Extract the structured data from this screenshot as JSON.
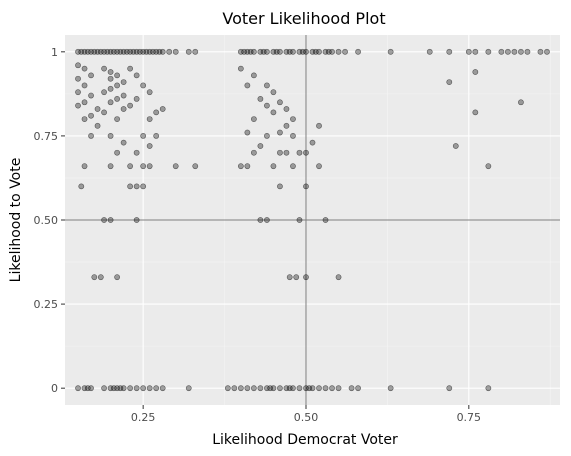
{
  "chart_data": {
    "type": "scatter",
    "title": "Voter Likelihood Plot",
    "xlabel": "Likelihood Democrat Voter",
    "ylabel": "Likelihood to Vote",
    "xlim": [
      0.13,
      0.89
    ],
    "ylim": [
      -0.05,
      1.05
    ],
    "x_ticks": [
      0.25,
      0.5,
      0.75
    ],
    "x_tick_labels": [
      "0.25",
      "0.50",
      "0.75"
    ],
    "y_ticks": [
      0,
      0.25,
      0.5,
      0.75,
      1
    ],
    "y_tick_labels": [
      "0",
      "0.25",
      "0.50",
      "0.75",
      "1"
    ],
    "reference_lines": {
      "x": 0.5,
      "y": 0.5,
      "color": "#7f7f7f"
    },
    "grid": true,
    "panel_color": "#ebebeb",
    "point_color": "#000000",
    "point_alpha": 0.35,
    "points": [
      [
        0.15,
        1
      ],
      [
        0.16,
        1
      ],
      [
        0.17,
        1
      ],
      [
        0.18,
        1
      ],
      [
        0.19,
        1
      ],
      [
        0.2,
        1
      ],
      [
        0.21,
        1
      ],
      [
        0.22,
        1
      ],
      [
        0.23,
        1
      ],
      [
        0.24,
        1
      ],
      [
        0.25,
        1
      ],
      [
        0.26,
        1
      ],
      [
        0.27,
        1
      ],
      [
        0.28,
        1
      ],
      [
        0.29,
        1
      ],
      [
        0.3,
        1
      ],
      [
        0.32,
        1
      ],
      [
        0.33,
        1
      ],
      [
        0.155,
        1
      ],
      [
        0.165,
        1
      ],
      [
        0.175,
        1
      ],
      [
        0.185,
        1
      ],
      [
        0.195,
        1
      ],
      [
        0.205,
        1
      ],
      [
        0.215,
        1
      ],
      [
        0.225,
        1
      ],
      [
        0.235,
        1
      ],
      [
        0.245,
        1
      ],
      [
        0.255,
        1
      ],
      [
        0.265,
        1
      ],
      [
        0.275,
        1
      ],
      [
        0.4,
        1
      ],
      [
        0.41,
        1
      ],
      [
        0.42,
        1
      ],
      [
        0.43,
        1
      ],
      [
        0.44,
        1
      ],
      [
        0.45,
        1
      ],
      [
        0.46,
        1
      ],
      [
        0.47,
        1
      ],
      [
        0.48,
        1
      ],
      [
        0.49,
        1
      ],
      [
        0.5,
        1
      ],
      [
        0.51,
        1
      ],
      [
        0.52,
        1
      ],
      [
        0.53,
        1
      ],
      [
        0.54,
        1
      ],
      [
        0.55,
        1
      ],
      [
        0.56,
        1
      ],
      [
        0.58,
        1
      ],
      [
        0.405,
        1
      ],
      [
        0.415,
        1
      ],
      [
        0.435,
        1
      ],
      [
        0.455,
        1
      ],
      [
        0.475,
        1
      ],
      [
        0.495,
        1
      ],
      [
        0.515,
        1
      ],
      [
        0.535,
        1
      ],
      [
        0.63,
        1
      ],
      [
        0.69,
        1
      ],
      [
        0.72,
        1
      ],
      [
        0.75,
        1
      ],
      [
        0.76,
        1
      ],
      [
        0.78,
        1
      ],
      [
        0.8,
        1
      ],
      [
        0.81,
        1
      ],
      [
        0.82,
        1
      ],
      [
        0.83,
        1
      ],
      [
        0.84,
        1
      ],
      [
        0.86,
        1
      ],
      [
        0.87,
        1
      ],
      [
        0.15,
        0
      ],
      [
        0.16,
        0
      ],
      [
        0.17,
        0
      ],
      [
        0.19,
        0
      ],
      [
        0.2,
        0
      ],
      [
        0.21,
        0
      ],
      [
        0.22,
        0
      ],
      [
        0.23,
        0
      ],
      [
        0.24,
        0
      ],
      [
        0.25,
        0
      ],
      [
        0.26,
        0
      ],
      [
        0.27,
        0
      ],
      [
        0.28,
        0
      ],
      [
        0.32,
        0
      ],
      [
        0.205,
        0
      ],
      [
        0.215,
        0
      ],
      [
        0.165,
        0
      ],
      [
        0.38,
        0
      ],
      [
        0.39,
        0
      ],
      [
        0.4,
        0
      ],
      [
        0.41,
        0
      ],
      [
        0.42,
        0
      ],
      [
        0.43,
        0
      ],
      [
        0.44,
        0
      ],
      [
        0.45,
        0
      ],
      [
        0.46,
        0
      ],
      [
        0.47,
        0
      ],
      [
        0.48,
        0
      ],
      [
        0.49,
        0
      ],
      [
        0.5,
        0
      ],
      [
        0.51,
        0
      ],
      [
        0.52,
        0
      ],
      [
        0.53,
        0
      ],
      [
        0.54,
        0
      ],
      [
        0.55,
        0
      ],
      [
        0.57,
        0
      ],
      [
        0.58,
        0
      ],
      [
        0.445,
        0
      ],
      [
        0.475,
        0
      ],
      [
        0.505,
        0
      ],
      [
        0.63,
        0
      ],
      [
        0.72,
        0
      ],
      [
        0.78,
        0
      ],
      [
        0.15,
        0.96
      ],
      [
        0.16,
        0.95
      ],
      [
        0.17,
        0.93
      ],
      [
        0.15,
        0.92
      ],
      [
        0.16,
        0.9
      ],
      [
        0.15,
        0.88
      ],
      [
        0.17,
        0.87
      ],
      [
        0.16,
        0.85
      ],
      [
        0.15,
        0.84
      ],
      [
        0.18,
        0.83
      ],
      [
        0.17,
        0.81
      ],
      [
        0.16,
        0.8
      ],
      [
        0.18,
        0.78
      ],
      [
        0.17,
        0.75
      ],
      [
        0.16,
        0.66
      ],
      [
        0.155,
        0.6
      ],
      [
        0.19,
        0.95
      ],
      [
        0.2,
        0.94
      ],
      [
        0.21,
        0.93
      ],
      [
        0.2,
        0.92
      ],
      [
        0.22,
        0.91
      ],
      [
        0.21,
        0.9
      ],
      [
        0.2,
        0.89
      ],
      [
        0.19,
        0.88
      ],
      [
        0.22,
        0.87
      ],
      [
        0.21,
        0.86
      ],
      [
        0.2,
        0.85
      ],
      [
        0.23,
        0.84
      ],
      [
        0.22,
        0.83
      ],
      [
        0.19,
        0.82
      ],
      [
        0.21,
        0.8
      ],
      [
        0.2,
        0.75
      ],
      [
        0.22,
        0.73
      ],
      [
        0.21,
        0.7
      ],
      [
        0.23,
        0.66
      ],
      [
        0.2,
        0.66
      ],
      [
        0.19,
        0.5
      ],
      [
        0.2,
        0.5
      ],
      [
        0.185,
        0.33
      ],
      [
        0.21,
        0.33
      ],
      [
        0.175,
        0.33
      ],
      [
        0.23,
        0.95
      ],
      [
        0.24,
        0.93
      ],
      [
        0.25,
        0.9
      ],
      [
        0.26,
        0.88
      ],
      [
        0.24,
        0.86
      ],
      [
        0.27,
        0.82
      ],
      [
        0.26,
        0.8
      ],
      [
        0.25,
        0.75
      ],
      [
        0.27,
        0.75
      ],
      [
        0.24,
        0.7
      ],
      [
        0.25,
        0.66
      ],
      [
        0.26,
        0.66
      ],
      [
        0.24,
        0.6
      ],
      [
        0.25,
        0.6
      ],
      [
        0.24,
        0.5
      ],
      [
        0.23,
        0.6
      ],
      [
        0.28,
        0.83
      ],
      [
        0.26,
        0.72
      ],
      [
        0.3,
        0.66
      ],
      [
        0.33,
        0.66
      ],
      [
        0.4,
        0.95
      ],
      [
        0.42,
        0.93
      ],
      [
        0.41,
        0.9
      ],
      [
        0.44,
        0.9
      ],
      [
        0.45,
        0.88
      ],
      [
        0.43,
        0.86
      ],
      [
        0.46,
        0.85
      ],
      [
        0.47,
        0.83
      ],
      [
        0.45,
        0.82
      ],
      [
        0.48,
        0.8
      ],
      [
        0.47,
        0.78
      ],
      [
        0.46,
        0.76
      ],
      [
        0.48,
        0.75
      ],
      [
        0.44,
        0.75
      ],
      [
        0.43,
        0.72
      ],
      [
        0.42,
        0.7
      ],
      [
        0.46,
        0.7
      ],
      [
        0.47,
        0.7
      ],
      [
        0.49,
        0.7
      ],
      [
        0.5,
        0.7
      ],
      [
        0.4,
        0.66
      ],
      [
        0.41,
        0.66
      ],
      [
        0.45,
        0.66
      ],
      [
        0.48,
        0.66
      ],
      [
        0.52,
        0.66
      ],
      [
        0.46,
        0.6
      ],
      [
        0.5,
        0.6
      ],
      [
        0.43,
        0.5
      ],
      [
        0.44,
        0.5
      ],
      [
        0.49,
        0.5
      ],
      [
        0.53,
        0.5
      ],
      [
        0.475,
        0.33
      ],
      [
        0.485,
        0.33
      ],
      [
        0.5,
        0.33
      ],
      [
        0.55,
        0.33
      ],
      [
        0.52,
        0.78
      ],
      [
        0.51,
        0.73
      ],
      [
        0.42,
        0.8
      ],
      [
        0.44,
        0.84
      ],
      [
        0.41,
        0.76
      ],
      [
        0.72,
        0.91
      ],
      [
        0.76,
        0.94
      ],
      [
        0.83,
        0.85
      ],
      [
        0.76,
        0.82
      ],
      [
        0.73,
        0.72
      ],
      [
        0.78,
        0.66
      ]
    ]
  }
}
